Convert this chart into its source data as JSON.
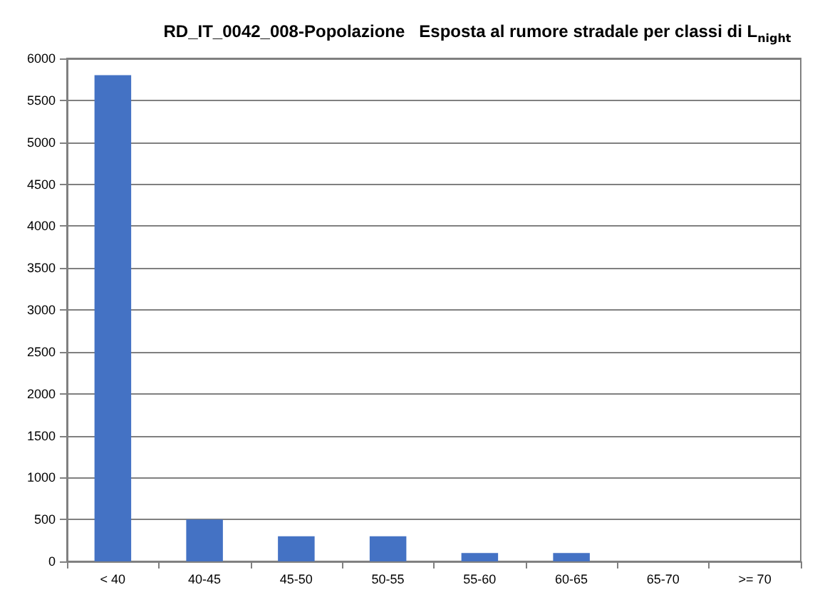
{
  "chart_data": {
    "type": "bar",
    "title": "RD_IT_0042_008-Popolazione   Esposta al rumore stradale per classi di L$_{night}$",
    "categories": [
      "< 40",
      "40-45",
      "45-50",
      "50-55",
      "55-60",
      "60-65",
      "65-70",
      ">= 70"
    ],
    "values": [
      5800,
      500,
      300,
      300,
      100,
      100,
      0,
      0
    ],
    "color": "#4472c4",
    "ylim": [
      0,
      6000
    ],
    "yticks": [
      0,
      500,
      1000,
      1500,
      2000,
      2500,
      3000,
      3500,
      4000,
      4500,
      5000,
      5500,
      6000
    ],
    "grid": "y"
  }
}
